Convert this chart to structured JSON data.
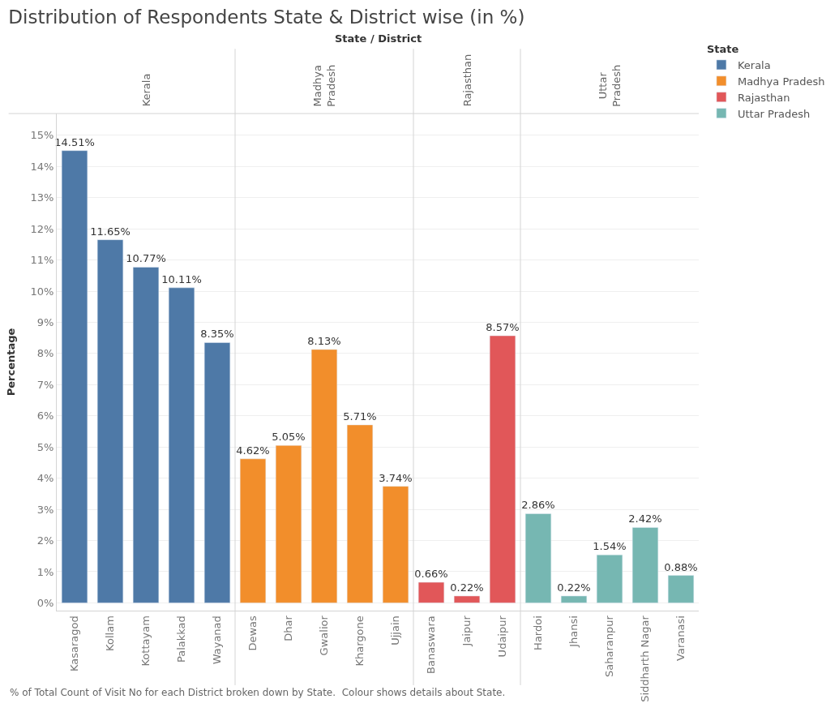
{
  "chart_data": {
    "type": "bar",
    "title": "Distribution of Respondents State & District wise (in %)",
    "ylabel": "Percentage",
    "legend_title": "State",
    "categories": [
      "Kasaragod",
      "Kollam",
      "Kottayam",
      "Palakkad",
      "Wayanad",
      "Dewas",
      "Dhar",
      "Gwalior",
      "Khargone",
      "Ujjain",
      "Banaswara",
      "Jaipur",
      "Udaipur",
      "Hardoi",
      "Jhansi",
      "Saharanpur",
      "Siddharth Nagar",
      "Varanasi"
    ],
    "series": [
      {
        "name": "Kerala",
        "color": "#4e79a7",
        "values": [
          14.51,
          11.65,
          10.77,
          10.11,
          8.35,
          null,
          null,
          null,
          null,
          null,
          null,
          null,
          null,
          null,
          null,
          null,
          null,
          null
        ],
        "value_labels": [
          "14.51%",
          "11.65%",
          "10.77%",
          "10.11%",
          "8.35%",
          null,
          null,
          null,
          null,
          null,
          null,
          null,
          null,
          null,
          null,
          null,
          null,
          null
        ]
      },
      {
        "name": "Madhya Pradesh",
        "color": "#f28e2b",
        "values": [
          null,
          null,
          null,
          null,
          null,
          4.62,
          5.05,
          8.13,
          5.71,
          3.74,
          null,
          null,
          null,
          null,
          null,
          null,
          null,
          null
        ],
        "value_labels": [
          null,
          null,
          null,
          null,
          null,
          "4.62%",
          "5.05%",
          "8.13%",
          "5.71%",
          "3.74%",
          null,
          null,
          null,
          null,
          null,
          null,
          null,
          null
        ]
      },
      {
        "name": "Rajasthan",
        "color": "#e15759",
        "values": [
          null,
          null,
          null,
          null,
          null,
          null,
          null,
          null,
          null,
          null,
          0.66,
          0.22,
          8.57,
          null,
          null,
          null,
          null,
          null
        ],
        "value_labels": [
          null,
          null,
          null,
          null,
          null,
          null,
          null,
          null,
          null,
          null,
          "0.66%",
          "0.22%",
          "8.57%",
          null,
          null,
          null,
          null,
          null
        ]
      },
      {
        "name": "Uttar Pradesh",
        "color": "#76b7b2",
        "values": [
          null,
          null,
          null,
          null,
          null,
          null,
          null,
          null,
          null,
          null,
          null,
          null,
          null,
          2.86,
          0.22,
          1.54,
          2.42,
          0.88
        ],
        "value_labels": [
          null,
          null,
          null,
          null,
          null,
          null,
          null,
          null,
          null,
          null,
          null,
          null,
          null,
          "2.86%",
          "0.22%",
          "1.54%",
          "2.42%",
          "0.88%"
        ]
      }
    ],
    "ylim": [
      -0.25,
      15.7
    ],
    "yticks": [
      {
        "value": 0,
        "label": "0%"
      },
      {
        "value": 1,
        "label": "1%"
      },
      {
        "value": 2,
        "label": "2%"
      },
      {
        "value": 3,
        "label": "3%"
      },
      {
        "value": 4,
        "label": "4%"
      },
      {
        "value": 5,
        "label": "5%"
      },
      {
        "value": 6,
        "label": "6%"
      },
      {
        "value": 7,
        "label": "7%"
      },
      {
        "value": 8,
        "label": "8%"
      },
      {
        "value": 9,
        "label": "9%"
      },
      {
        "value": 10,
        "label": "10%"
      },
      {
        "value": 11,
        "label": "11%"
      },
      {
        "value": 12,
        "label": "12%"
      },
      {
        "value": 13,
        "label": "13%"
      },
      {
        "value": 14,
        "label": "14%"
      },
      {
        "value": 15,
        "label": "15%"
      }
    ],
    "grid": "y",
    "legend": "top right",
    "annotations": [
      "State / District",
      "% of Total Count of Visit No for each District broken down by State.  Colour shows details about State."
    ]
  }
}
